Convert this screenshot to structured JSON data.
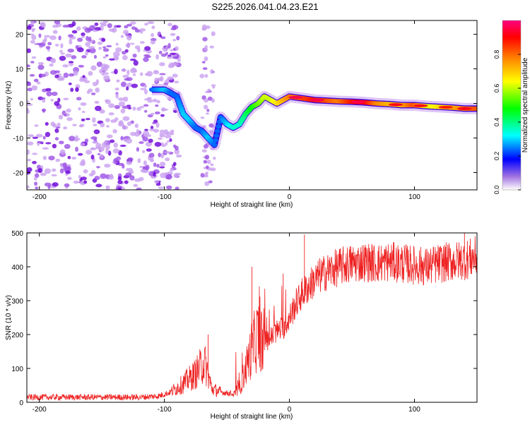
{
  "figure": {
    "title": "S225.2026.041.04.23.E21"
  },
  "colors": {
    "signal": "#ee2222",
    "scatter_light": "#c9a0f0",
    "scatter_mid": "#9b50e6",
    "scatter_dark": "#6a00d8"
  },
  "chart_data": [
    {
      "type": "heatmap",
      "title": "S225.2026.041.04.23.E21",
      "xlabel": "Height of straight line (km)",
      "ylabel": "Frequency (Hz)",
      "xlim": [
        -210,
        150
      ],
      "ylim": [
        -25,
        24
      ],
      "xticks": [
        -200,
        -100,
        0,
        100
      ],
      "yticks": [
        -20,
        -10,
        0,
        10,
        20
      ],
      "colorbar": {
        "label": "Normalized spectral amplitude",
        "range": [
          0,
          1
        ],
        "ticks": [
          0.0,
          0.2,
          0.4,
          0.6,
          0.8
        ],
        "tick_labels": [
          "0.0",
          "0.2",
          "0.4",
          "0.6",
          "0.8"
        ],
        "colormap": [
          "#ffffff",
          "#8a2be2",
          "#0000ff",
          "#00ffff",
          "#00ff00",
          "#ffff00",
          "#ff8000",
          "#ff0000",
          "#ff0080"
        ]
      },
      "noise_region_x": [
        -210,
        -100
      ],
      "noise_band_x": [
        -70,
        -60
      ],
      "ridge": {
        "x": [
          -110,
          -100,
          -95,
          -90,
          -85,
          -80,
          -75,
          -70,
          -65,
          -60,
          -55,
          -50,
          -45,
          -40,
          -35,
          -30,
          -25,
          -20,
          -15,
          -10,
          -5,
          0,
          10,
          20,
          30,
          40,
          50,
          60,
          70,
          80,
          90,
          100,
          110,
          120,
          130,
          140,
          150
        ],
        "freq_hz": [
          4,
          4,
          3,
          2,
          -3,
          -5,
          -7,
          -8,
          -10,
          -12,
          -4,
          -6,
          -7,
          -6,
          -3,
          -1,
          0,
          2,
          1,
          0,
          1,
          2,
          1.5,
          1,
          0.8,
          0.6,
          0.5,
          0.3,
          0,
          -0.2,
          -0.5,
          -0.5,
          -0.8,
          -1,
          -1.2,
          -1.5,
          -1.5
        ],
        "amplitude": [
          0.3,
          0.35,
          0.3,
          0.3,
          0.35,
          0.35,
          0.3,
          0.3,
          0.35,
          0.3,
          0.3,
          0.35,
          0.4,
          0.4,
          0.45,
          0.5,
          0.55,
          0.6,
          0.6,
          0.65,
          0.7,
          0.75,
          0.8,
          0.85,
          0.8,
          0.75,
          0.85,
          0.9,
          0.75,
          0.7,
          0.7,
          0.8,
          0.6,
          0.65,
          0.7,
          0.75,
          0.8
        ]
      }
    },
    {
      "type": "line",
      "xlabel": "Height of straight line (km)",
      "ylabel": "SNR (10 * v/v)",
      "xlim": [
        -210,
        150
      ],
      "ylim": [
        0,
        500
      ],
      "xticks": [
        -200,
        -100,
        0,
        100
      ],
      "yticks": [
        0,
        100,
        200,
        300,
        400,
        500
      ],
      "series": [
        {
          "name": "SNR",
          "x": [
            -210,
            -180,
            -150,
            -120,
            -105,
            -95,
            -85,
            -75,
            -68,
            -62,
            -55,
            -45,
            -40,
            -35,
            -30,
            -25,
            -20,
            -15,
            -10,
            -5,
            0,
            5,
            10,
            15,
            20,
            25,
            30,
            40,
            50,
            60,
            70,
            80,
            90,
            100,
            110,
            120,
            130,
            140,
            150
          ],
          "values": [
            15,
            15,
            15,
            15,
            18,
            30,
            55,
            85,
            120,
            40,
            30,
            25,
            40,
            100,
            160,
            200,
            180,
            190,
            210,
            220,
            250,
            290,
            320,
            340,
            360,
            375,
            385,
            400,
            410,
            415,
            410,
            415,
            410,
            405,
            400,
            410,
            415,
            420,
            430
          ],
          "peaks": [
            {
              "x": -65,
              "y": 200
            },
            {
              "x": -30,
              "y": 400
            },
            {
              "x": -5,
              "y": 380
            },
            {
              "x": 12,
              "y": 495
            },
            {
              "x": 140,
              "y": 500
            }
          ]
        }
      ]
    }
  ]
}
